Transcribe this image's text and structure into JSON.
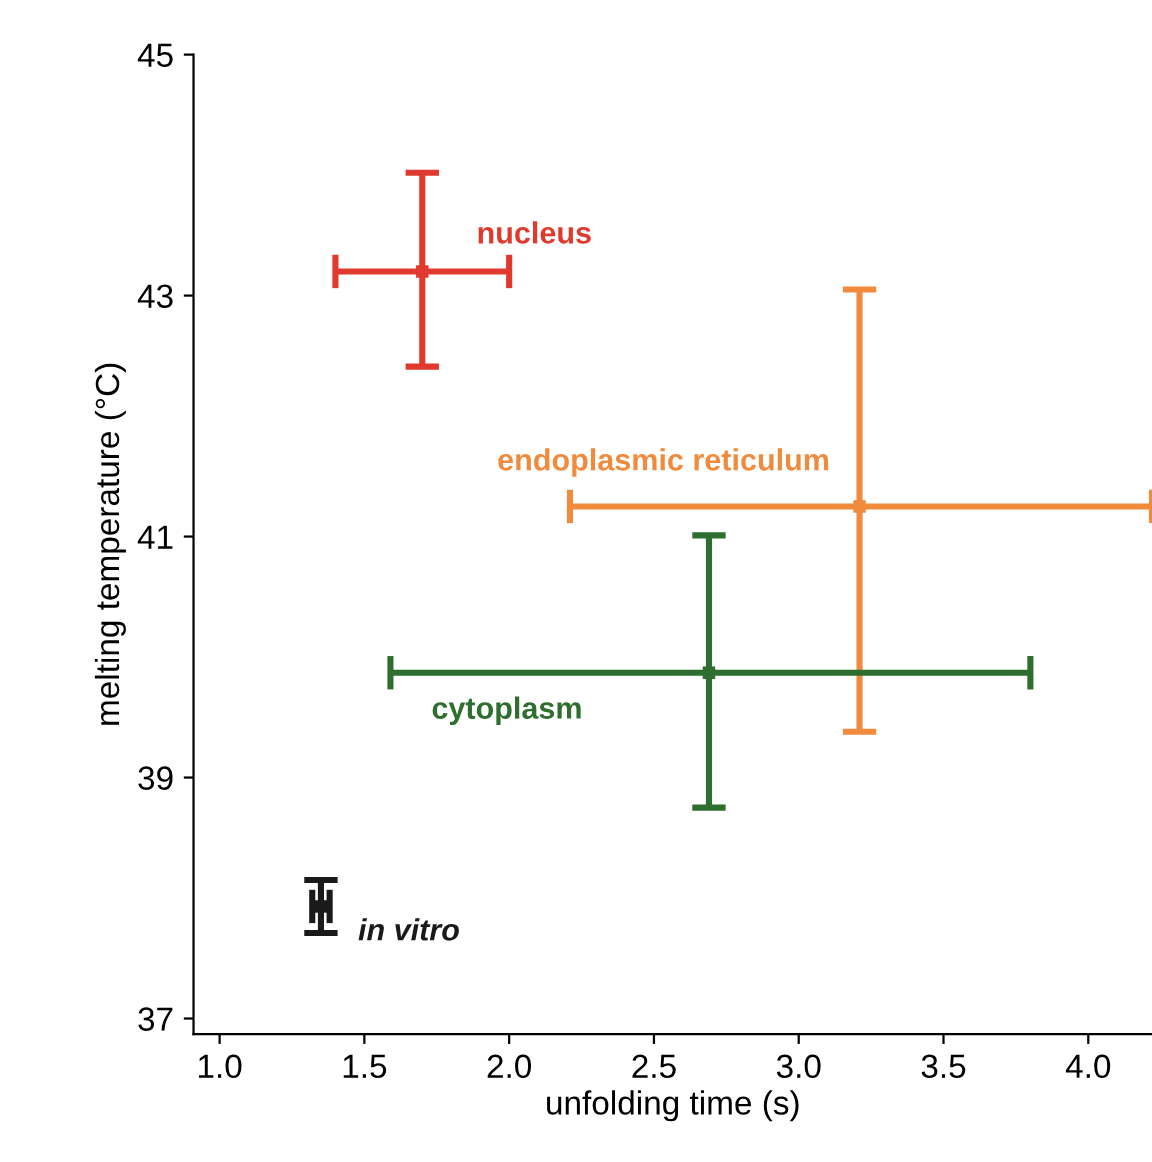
{
  "chart_data": {
    "type": "scatter",
    "xlabel": "unfolding time (s)",
    "ylabel": "melting temperature (°C)",
    "xlim": [
      0.91,
      4.22
    ],
    "ylim": [
      36.87,
      45
    ],
    "grid": false,
    "xticks": [
      {
        "value": 1.0,
        "label": "1.0"
      },
      {
        "value": 1.5,
        "label": "1.5"
      },
      {
        "value": 2.0,
        "label": "2.0"
      },
      {
        "value": 2.5,
        "label": "2.5"
      },
      {
        "value": 3.0,
        "label": "3.0"
      },
      {
        "value": 3.5,
        "label": "3.5"
      },
      {
        "value": 4.0,
        "label": "4.0"
      }
    ],
    "yticks": [
      37,
      39,
      41,
      43,
      45
    ],
    "series": [
      {
        "name": "nucleus",
        "color": "#e03a2e",
        "x": [
          1.7
        ],
        "values": [
          43.2
        ],
        "errors": [
          [
            42.41,
            44.02
          ]
        ],
        "xerrors": [
          [
            1.4,
            2.0
          ]
        ]
      },
      {
        "name": "endoplasmic reticulum",
        "color": "#f08a3c",
        "x": [
          3.21
        ],
        "values": [
          41.25
        ],
        "errors": [
          [
            39.38,
            43.05
          ]
        ],
        "xerrors": [
          [
            2.21,
            4.22
          ]
        ]
      },
      {
        "name": "cytoplasm",
        "color": "#2e6e2e",
        "x": [
          2.69
        ],
        "values": [
          39.87
        ],
        "errors": [
          [
            38.75,
            41.01
          ]
        ],
        "xerrors": [
          [
            1.59,
            3.8
          ]
        ]
      },
      {
        "name": "in vitro",
        "color": "#1a1a1a",
        "x": [
          1.35
        ],
        "values": [
          37.93
        ],
        "errors": [
          [
            37.71,
            38.15
          ]
        ],
        "xerrors": [
          [
            1.32,
            1.38
          ]
        ]
      }
    ]
  }
}
